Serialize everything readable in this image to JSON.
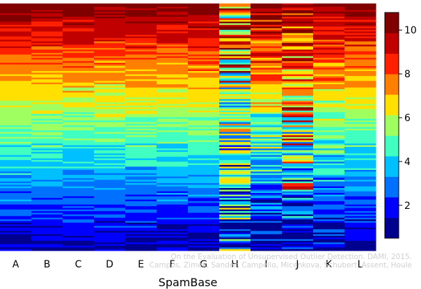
{
  "chart_data": {
    "type": "heatmap",
    "title": "",
    "xlabel": "SpamBase",
    "ylabel": "",
    "categories": [
      "A",
      "B",
      "C",
      "D",
      "E",
      "F",
      "G",
      "H",
      "I",
      "J",
      "K",
      "L"
    ],
    "value_range": [
      0.5,
      10.8
    ],
    "colorbar": {
      "ticks": [
        2,
        4,
        6,
        8,
        10
      ],
      "colors": [
        "#00008f",
        "#0000ff",
        "#0070ff",
        "#00c0ff",
        "#40ffc0",
        "#a0ff60",
        "#ffe000",
        "#ff8000",
        "#ff2000",
        "#c00000",
        "#800000"
      ],
      "placement": "right"
    },
    "grid": false,
    "legend": "colorbar-right"
  },
  "watermark": {
    "line1": "On the Evaluation of Unsupervised Outlier Detection. DAMI, 2015.",
    "line2": "Campos, Zimek, Sander, Campello, Micenkova, Schubert, Assent, Houle"
  }
}
